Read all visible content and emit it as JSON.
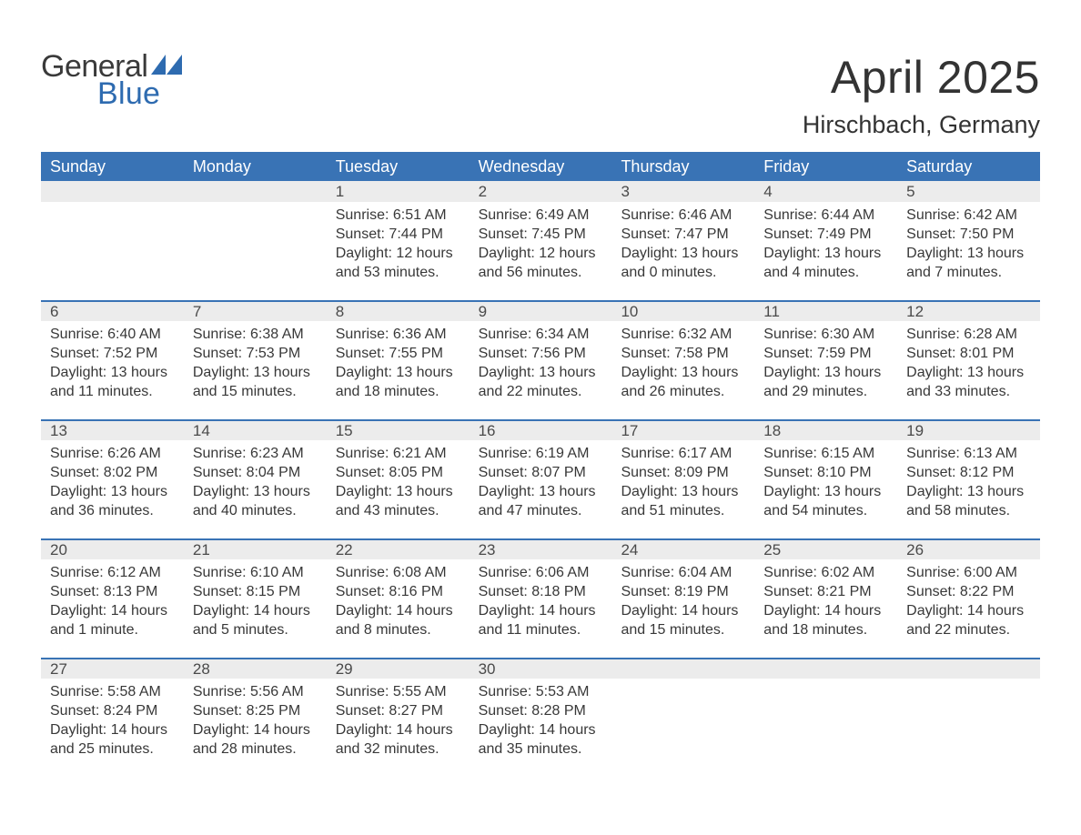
{
  "logo": {
    "word1": "General",
    "word2": "Blue"
  },
  "title": "April 2025",
  "location": "Hirschbach, Germany",
  "colors": {
    "header_bg": "#3973b5",
    "header_text": "#ffffff",
    "daynum_bg": "#ececec",
    "row_border": "#3973b5",
    "body_text": "#383838",
    "logo_dark": "#3a3a3a",
    "logo_blue": "#2e6bb0"
  },
  "weekdays": [
    "Sunday",
    "Monday",
    "Tuesday",
    "Wednesday",
    "Thursday",
    "Friday",
    "Saturday"
  ],
  "weeks": [
    [
      null,
      null,
      {
        "n": "1",
        "sr": "Sunrise: 6:51 AM",
        "ss": "Sunset: 7:44 PM",
        "d1": "Daylight: 12 hours",
        "d2": "and 53 minutes."
      },
      {
        "n": "2",
        "sr": "Sunrise: 6:49 AM",
        "ss": "Sunset: 7:45 PM",
        "d1": "Daylight: 12 hours",
        "d2": "and 56 minutes."
      },
      {
        "n": "3",
        "sr": "Sunrise: 6:46 AM",
        "ss": "Sunset: 7:47 PM",
        "d1": "Daylight: 13 hours",
        "d2": "and 0 minutes."
      },
      {
        "n": "4",
        "sr": "Sunrise: 6:44 AM",
        "ss": "Sunset: 7:49 PM",
        "d1": "Daylight: 13 hours",
        "d2": "and 4 minutes."
      },
      {
        "n": "5",
        "sr": "Sunrise: 6:42 AM",
        "ss": "Sunset: 7:50 PM",
        "d1": "Daylight: 13 hours",
        "d2": "and 7 minutes."
      }
    ],
    [
      {
        "n": "6",
        "sr": "Sunrise: 6:40 AM",
        "ss": "Sunset: 7:52 PM",
        "d1": "Daylight: 13 hours",
        "d2": "and 11 minutes."
      },
      {
        "n": "7",
        "sr": "Sunrise: 6:38 AM",
        "ss": "Sunset: 7:53 PM",
        "d1": "Daylight: 13 hours",
        "d2": "and 15 minutes."
      },
      {
        "n": "8",
        "sr": "Sunrise: 6:36 AM",
        "ss": "Sunset: 7:55 PM",
        "d1": "Daylight: 13 hours",
        "d2": "and 18 minutes."
      },
      {
        "n": "9",
        "sr": "Sunrise: 6:34 AM",
        "ss": "Sunset: 7:56 PM",
        "d1": "Daylight: 13 hours",
        "d2": "and 22 minutes."
      },
      {
        "n": "10",
        "sr": "Sunrise: 6:32 AM",
        "ss": "Sunset: 7:58 PM",
        "d1": "Daylight: 13 hours",
        "d2": "and 26 minutes."
      },
      {
        "n": "11",
        "sr": "Sunrise: 6:30 AM",
        "ss": "Sunset: 7:59 PM",
        "d1": "Daylight: 13 hours",
        "d2": "and 29 minutes."
      },
      {
        "n": "12",
        "sr": "Sunrise: 6:28 AM",
        "ss": "Sunset: 8:01 PM",
        "d1": "Daylight: 13 hours",
        "d2": "and 33 minutes."
      }
    ],
    [
      {
        "n": "13",
        "sr": "Sunrise: 6:26 AM",
        "ss": "Sunset: 8:02 PM",
        "d1": "Daylight: 13 hours",
        "d2": "and 36 minutes."
      },
      {
        "n": "14",
        "sr": "Sunrise: 6:23 AM",
        "ss": "Sunset: 8:04 PM",
        "d1": "Daylight: 13 hours",
        "d2": "and 40 minutes."
      },
      {
        "n": "15",
        "sr": "Sunrise: 6:21 AM",
        "ss": "Sunset: 8:05 PM",
        "d1": "Daylight: 13 hours",
        "d2": "and 43 minutes."
      },
      {
        "n": "16",
        "sr": "Sunrise: 6:19 AM",
        "ss": "Sunset: 8:07 PM",
        "d1": "Daylight: 13 hours",
        "d2": "and 47 minutes."
      },
      {
        "n": "17",
        "sr": "Sunrise: 6:17 AM",
        "ss": "Sunset: 8:09 PM",
        "d1": "Daylight: 13 hours",
        "d2": "and 51 minutes."
      },
      {
        "n": "18",
        "sr": "Sunrise: 6:15 AM",
        "ss": "Sunset: 8:10 PM",
        "d1": "Daylight: 13 hours",
        "d2": "and 54 minutes."
      },
      {
        "n": "19",
        "sr": "Sunrise: 6:13 AM",
        "ss": "Sunset: 8:12 PM",
        "d1": "Daylight: 13 hours",
        "d2": "and 58 minutes."
      }
    ],
    [
      {
        "n": "20",
        "sr": "Sunrise: 6:12 AM",
        "ss": "Sunset: 8:13 PM",
        "d1": "Daylight: 14 hours",
        "d2": "and 1 minute."
      },
      {
        "n": "21",
        "sr": "Sunrise: 6:10 AM",
        "ss": "Sunset: 8:15 PM",
        "d1": "Daylight: 14 hours",
        "d2": "and 5 minutes."
      },
      {
        "n": "22",
        "sr": "Sunrise: 6:08 AM",
        "ss": "Sunset: 8:16 PM",
        "d1": "Daylight: 14 hours",
        "d2": "and 8 minutes."
      },
      {
        "n": "23",
        "sr": "Sunrise: 6:06 AM",
        "ss": "Sunset: 8:18 PM",
        "d1": "Daylight: 14 hours",
        "d2": "and 11 minutes."
      },
      {
        "n": "24",
        "sr": "Sunrise: 6:04 AM",
        "ss": "Sunset: 8:19 PM",
        "d1": "Daylight: 14 hours",
        "d2": "and 15 minutes."
      },
      {
        "n": "25",
        "sr": "Sunrise: 6:02 AM",
        "ss": "Sunset: 8:21 PM",
        "d1": "Daylight: 14 hours",
        "d2": "and 18 minutes."
      },
      {
        "n": "26",
        "sr": "Sunrise: 6:00 AM",
        "ss": "Sunset: 8:22 PM",
        "d1": "Daylight: 14 hours",
        "d2": "and 22 minutes."
      }
    ],
    [
      {
        "n": "27",
        "sr": "Sunrise: 5:58 AM",
        "ss": "Sunset: 8:24 PM",
        "d1": "Daylight: 14 hours",
        "d2": "and 25 minutes."
      },
      {
        "n": "28",
        "sr": "Sunrise: 5:56 AM",
        "ss": "Sunset: 8:25 PM",
        "d1": "Daylight: 14 hours",
        "d2": "and 28 minutes."
      },
      {
        "n": "29",
        "sr": "Sunrise: 5:55 AM",
        "ss": "Sunset: 8:27 PM",
        "d1": "Daylight: 14 hours",
        "d2": "and 32 minutes."
      },
      {
        "n": "30",
        "sr": "Sunrise: 5:53 AM",
        "ss": "Sunset: 8:28 PM",
        "d1": "Daylight: 14 hours",
        "d2": "and 35 minutes."
      },
      null,
      null,
      null
    ]
  ]
}
